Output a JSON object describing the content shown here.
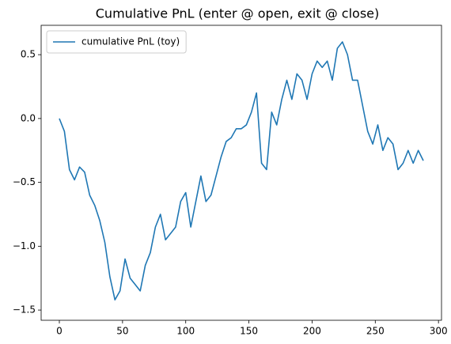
{
  "chart_data": {
    "type": "line",
    "title": "Cumulative PnL (enter @ open, exit @ close)",
    "x": [
      0,
      4,
      8,
      12,
      16,
      20,
      24,
      28,
      32,
      36,
      40,
      44,
      48,
      52,
      56,
      60,
      64,
      68,
      72,
      76,
      80,
      84,
      88,
      92,
      96,
      100,
      104,
      108,
      112,
      116,
      120,
      124,
      128,
      132,
      136,
      140,
      144,
      148,
      152,
      156,
      160,
      164,
      168,
      172,
      176,
      180,
      184,
      188,
      192,
      196,
      200,
      204,
      208,
      212,
      216,
      220,
      224,
      228,
      232,
      236,
      240,
      244,
      248,
      252,
      256,
      260,
      264,
      268,
      272,
      276,
      280,
      284,
      288
    ],
    "series": [
      {
        "name": "cumulative PnL (toy)",
        "color": "#1f77b4",
        "values": [
          0.0,
          -0.1,
          -0.4,
          -0.48,
          -0.38,
          -0.42,
          -0.6,
          -0.68,
          -0.8,
          -0.97,
          -1.24,
          -1.42,
          -1.35,
          -1.1,
          -1.25,
          -1.3,
          -1.35,
          -1.15,
          -1.05,
          -0.85,
          -0.75,
          -0.95,
          -0.9,
          -0.85,
          -0.65,
          -0.58,
          -0.85,
          -0.65,
          -0.45,
          -0.65,
          -0.6,
          -0.45,
          -0.3,
          -0.18,
          -0.15,
          -0.08,
          -0.08,
          -0.05,
          0.05,
          0.2,
          -0.35,
          -0.4,
          0.05,
          -0.05,
          0.15,
          0.3,
          0.15,
          0.35,
          0.3,
          0.15,
          0.35,
          0.45,
          0.4,
          0.45,
          0.3,
          0.55,
          0.6,
          0.5,
          0.3,
          0.3,
          0.1,
          -0.1,
          -0.2,
          -0.05,
          -0.25,
          -0.15,
          -0.2,
          -0.4,
          -0.35,
          -0.25,
          -0.35,
          -0.25,
          -0.33
        ]
      }
    ],
    "xlim": [
      -14.4,
      302.4
    ],
    "ylim": [
      -1.58,
      0.73
    ],
    "xticks": [
      0,
      50,
      100,
      150,
      200,
      250,
      300
    ],
    "yticks": [
      {
        "value": -1.5,
        "label": "−1.5"
      },
      {
        "value": -1.0,
        "label": "−1.0"
      },
      {
        "value": -0.5,
        "label": "−0.5"
      },
      {
        "value": 0.0,
        "label": "0.0"
      },
      0.5
    ],
    "legend": "upper left"
  }
}
